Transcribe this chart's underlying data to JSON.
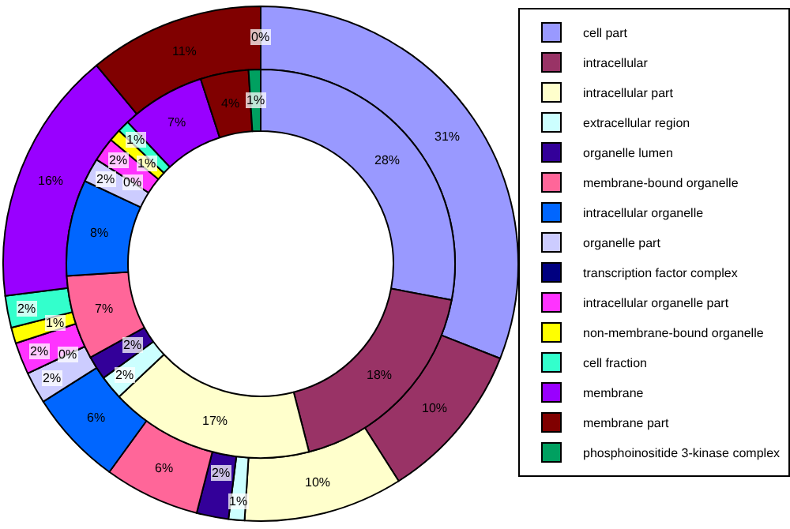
{
  "chart_data": {
    "type": "donut",
    "legend": "right",
    "categories": [
      "cell part",
      "intracellular",
      "intracellular part",
      "extracellular region",
      "organelle lumen",
      "membrane-bound organelle",
      "intracellular organelle",
      "organelle part",
      "transcription factor complex",
      "intracellular organelle part",
      "non-membrane-bound organelle",
      "cell fraction",
      "membrane",
      "membrane part",
      "phosphoinositide 3-kinase complex"
    ],
    "colors": [
      "#9999ff",
      "#993366",
      "#ffffcc",
      "#ccffff",
      "#330099",
      "#ff6699",
      "#0066ff",
      "#ccccff",
      "#000080",
      "#ff33ff",
      "#ffff00",
      "#33ffcc",
      "#9900ff",
      "#800000",
      "#00a060"
    ],
    "series": [
      {
        "values": [
          31,
          10,
          10,
          1,
          2,
          6,
          6,
          2,
          0,
          2,
          1,
          2,
          16,
          11,
          0
        ],
        "value_labels": [
          "31%",
          "10%",
          "10%",
          "1%",
          "2%",
          "6%",
          "6%",
          "2%",
          "0%",
          "2%",
          "1%",
          "2%",
          "16%",
          "11%",
          "0%"
        ]
      },
      {
        "values": [
          28,
          18,
          17,
          2,
          2,
          7,
          8,
          2,
          0,
          2,
          1,
          1,
          7,
          4,
          1
        ],
        "value_labels": [
          "28%",
          "18%",
          "17%",
          "2%",
          "2%",
          "7%",
          "8%",
          "2%",
          "0%",
          "2%",
          "1%",
          "1%",
          "7%",
          "4%",
          "1%"
        ]
      }
    ]
  }
}
